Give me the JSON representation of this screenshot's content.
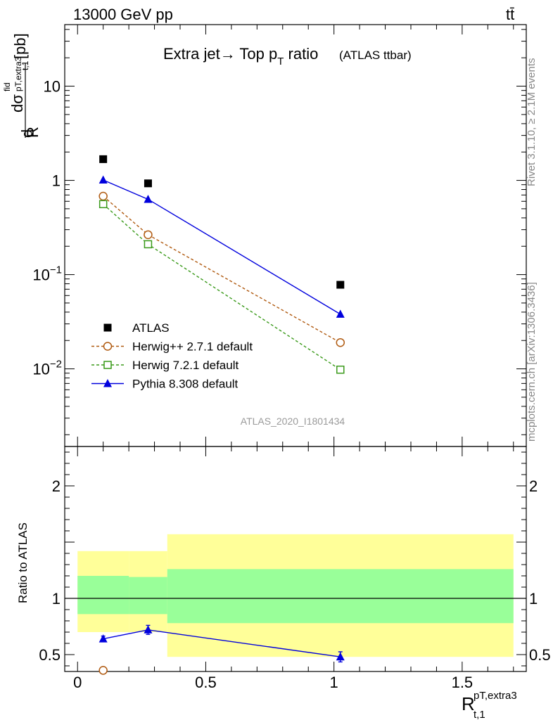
{
  "header": {
    "energy_label": "13000 GeV pp",
    "process_label": "tt̄",
    "title_main": "Extra jet→ Top p",
    "title_sub": "T",
    "title_tail": " ratio",
    "title_small": "(ATLAS ttbar)",
    "side_rivet": "Rivet 3.1.10, ≥ 2.1M events",
    "side_mcplots": "mcplots.cern.ch [arXiv:1306.3436]",
    "analysis_id": "ATLAS_2020_I1801434"
  },
  "axes": {
    "ylabel_main": "dσ/dR [pb]",
    "ylabel_ratio": "Ratio to ATLAS",
    "xlabel": "R",
    "xlabel_sup": "pT,extra3",
    "xlabel_sub": "t,1"
  },
  "legend": {
    "items": [
      {
        "label": "ATLAS",
        "color": "#000000",
        "marker": "filled-square",
        "line": "none"
      },
      {
        "label": "Herwig++ 2.7.1 default",
        "color": "#b05a10",
        "marker": "open-circle",
        "line": "dashed"
      },
      {
        "label": "Herwig 7.2.1 default",
        "color": "#3a9a1a",
        "marker": "open-square",
        "line": "dashed"
      },
      {
        "label": "Pythia 8.308 default",
        "color": "#0000dd",
        "marker": "filled-triangle",
        "line": "solid"
      }
    ]
  },
  "chart_data": [
    {
      "type": "scatter",
      "panel": "main",
      "yscale": "log",
      "xlim": [
        -0.05,
        1.75
      ],
      "ylim": [
        0.0015,
        45
      ],
      "yticks": [
        {
          "v": 10,
          "base": "10",
          "exp": ""
        },
        {
          "v": 1,
          "base": "1",
          "exp": ""
        },
        {
          "v": 0.1,
          "base": "10",
          "exp": "−1"
        },
        {
          "v": 0.01,
          "base": "10",
          "exp": "−2"
        }
      ],
      "series": [
        {
          "name": "ATLAS",
          "color": "#000000",
          "marker": "filled-square",
          "line": "none",
          "x": [
            0.1,
            0.275,
            1.025
          ],
          "y": [
            1.68,
            0.93,
            0.078
          ]
        },
        {
          "name": "Herwig++ 2.7.1 default",
          "color": "#b05a10",
          "marker": "open-circle",
          "line": "dashed",
          "x": [
            0.1,
            0.275,
            1.025
          ],
          "y": [
            0.68,
            0.265,
            0.019
          ]
        },
        {
          "name": "Herwig 7.2.1 default",
          "color": "#3a9a1a",
          "marker": "open-square",
          "line": "dashed",
          "x": [
            0.1,
            0.275,
            1.025
          ],
          "y": [
            0.56,
            0.21,
            0.0098
          ]
        },
        {
          "name": "Pythia 8.308 default",
          "color": "#0000dd",
          "marker": "filled-triangle",
          "line": "solid",
          "x": [
            0.1,
            0.275,
            1.025
          ],
          "y": [
            1.01,
            0.63,
            0.038
          ]
        }
      ]
    },
    {
      "type": "scatter",
      "panel": "ratio",
      "xlim": [
        -0.05,
        1.75
      ],
      "ylim": [
        0.35,
        2.35
      ],
      "yticks": [
        0.5,
        1,
        2
      ],
      "xticks": [
        0,
        0.5,
        1,
        1.5
      ],
      "bands": [
        {
          "x0": 0.0,
          "x1": 0.2,
          "yellow": [
            0.7,
            1.42
          ],
          "green": [
            0.86,
            1.2
          ]
        },
        {
          "x0": 0.2,
          "x1": 0.35,
          "yellow": [
            0.7,
            1.42
          ],
          "green": [
            0.86,
            1.19
          ]
        },
        {
          "x0": 0.35,
          "x1": 1.7,
          "yellow": [
            0.48,
            1.57
          ],
          "green": [
            0.78,
            1.26
          ]
        }
      ],
      "series": [
        {
          "name": "Herwig++ 2.7.1 default",
          "color": "#b05a10",
          "marker": "open-circle",
          "line": "dashed",
          "x": [
            0.1
          ],
          "y": [
            0.36
          ],
          "err": [
            0.015
          ]
        },
        {
          "name": "Pythia 8.308 default",
          "color": "#0000dd",
          "marker": "filled-triangle",
          "line": "solid",
          "x": [
            0.1,
            0.275,
            1.025
          ],
          "y": [
            0.64,
            0.72,
            0.48
          ],
          "err": [
            0.025,
            0.04,
            0.045
          ]
        }
      ]
    }
  ]
}
